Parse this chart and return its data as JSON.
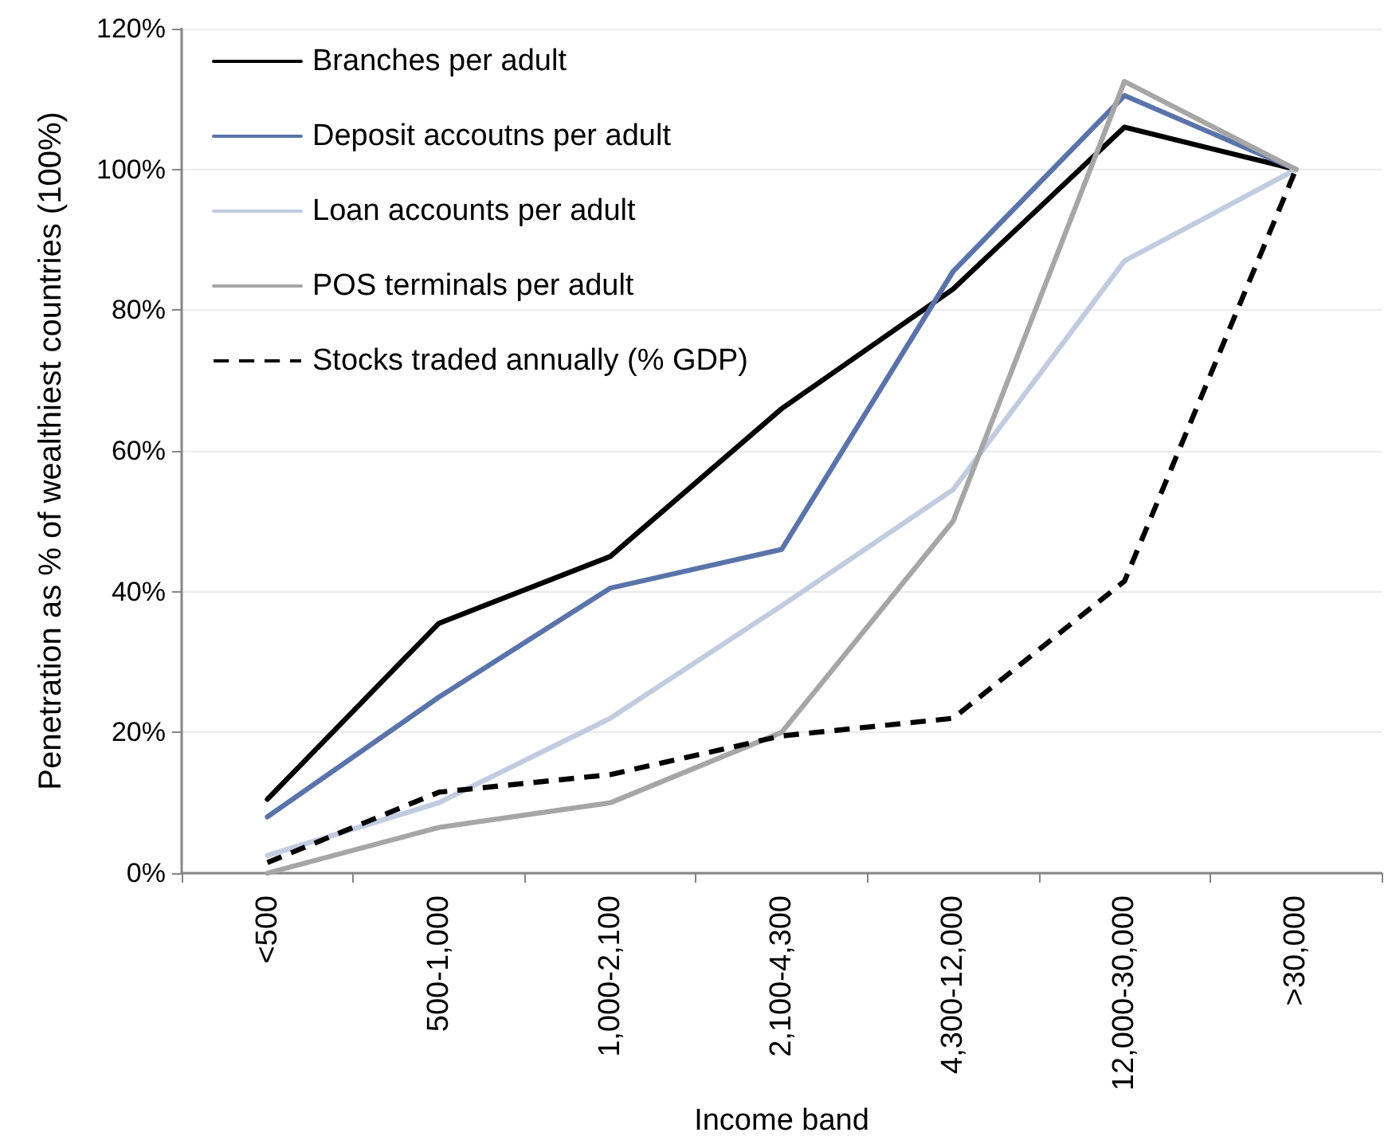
{
  "chart_data": {
    "type": "line",
    "xlabel": "Income band",
    "ylabel": "Penetration as % of wealthiest countries (100%)",
    "categories": [
      "<500",
      "500-1,000",
      "1,000-2,100",
      "2,100-4,300",
      "4,300-12,000",
      "12,000-30,000",
      ">30,000"
    ],
    "series": [
      {
        "name": "Branches per adult",
        "color": "#000000",
        "values": [
          10.5,
          35.5,
          45,
          66,
          83,
          106,
          100
        ]
      },
      {
        "name": "Deposit accoutns per adult",
        "color": "#5a74aa",
        "values": [
          8,
          25,
          40.5,
          46,
          85.5,
          110.5,
          100
        ]
      },
      {
        "name": "Loan accounts per adult",
        "color": "#c2cce0",
        "values": [
          2.5,
          10,
          22,
          38,
          54.5,
          87,
          100
        ]
      },
      {
        "name": "POS terminals per adult",
        "color": "#a6a6a6",
        "values": [
          0,
          6.5,
          10,
          20,
          50,
          112.5,
          100
        ]
      },
      {
        "name": "Stocks traded annually (% GDP)",
        "color": "#000000",
        "line_style": "dashed",
        "values": [
          1.5,
          11.5,
          14,
          19.5,
          22,
          41.5,
          100
        ]
      }
    ],
    "ylim": [
      0,
      120
    ],
    "yticks": [
      {
        "value": 0,
        "label": "0%"
      },
      {
        "value": 20,
        "label": "20%"
      },
      {
        "value": 40,
        "label": "40%"
      },
      {
        "value": 60,
        "label": "60%"
      },
      {
        "value": 80,
        "label": "80%"
      },
      {
        "value": 100,
        "label": "100%"
      },
      {
        "value": 120,
        "label": "120%"
      }
    ],
    "grid": "y",
    "legend": "top left",
    "marker": "none",
    "line_style": "solid"
  }
}
